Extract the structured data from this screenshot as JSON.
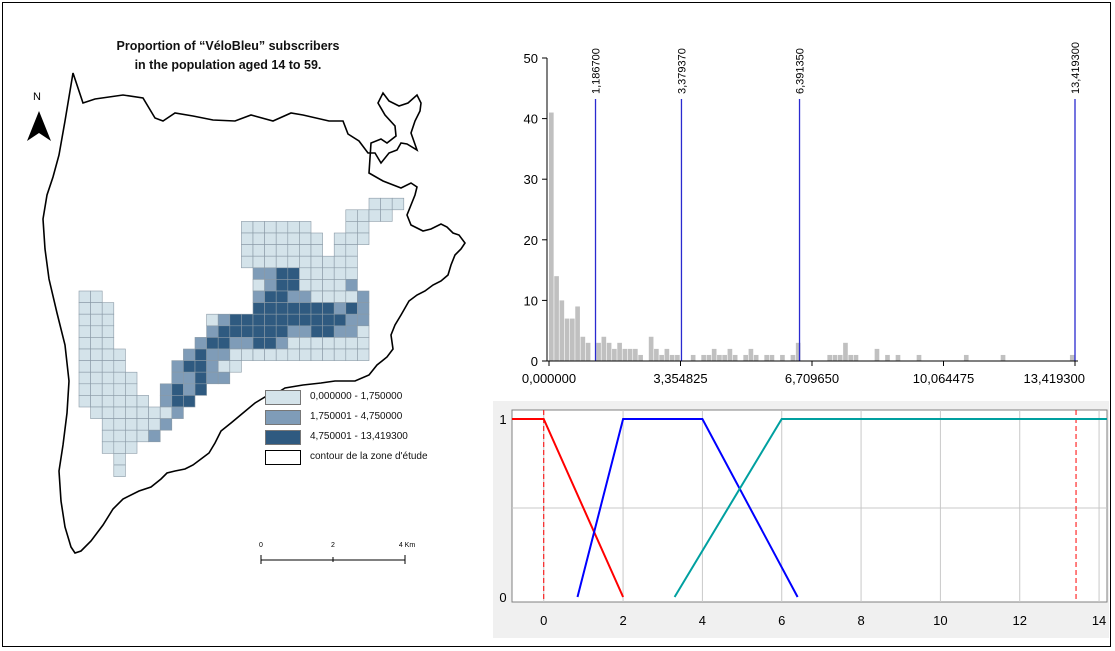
{
  "map": {
    "title_line1": "Proportion of “VéloBleu” subscribers",
    "title_line2": "in the population aged 14 to 59.",
    "north_label": "N",
    "legend": [
      {
        "label": "0,000000 - 1,750000",
        "color": "#d4e3ea"
      },
      {
        "label": "1,750001 - 4,750000",
        "color": "#7f9cb8"
      },
      {
        "label": "4,750001 - 13,419300",
        "color": "#2f5a80"
      },
      {
        "label": "contour de la zone d'étude",
        "color": "#ffffff"
      }
    ],
    "scale_bar": {
      "labels": [
        "0",
        "2",
        "4 Km"
      ]
    }
  },
  "histogram": {
    "y_ticks": [
      "50",
      "40",
      "30",
      "20",
      "10",
      "0"
    ],
    "x_ticks": [
      "0,000000",
      "3,354825",
      "6,709650",
      "10,064475",
      "13,419300"
    ],
    "breaks": [
      "1,186700",
      "3,379370",
      "6,391350",
      "13,419300"
    ],
    "colors": {
      "bars": "#c0c0c0",
      "break_lines": "#2a2ad0"
    }
  },
  "membership_plot": {
    "y_ticks": [
      "1",
      "0"
    ],
    "x_ticks": [
      "0",
      "2",
      "4",
      "6",
      "8",
      "10",
      "12",
      "14"
    ],
    "colors": {
      "set1": "#ff0000",
      "set2": "#0000ff",
      "set3": "#00a0a0",
      "bounds": "#ff0000"
    }
  },
  "chart_data": [
    {
      "type": "bar",
      "xlim": [
        0,
        13.4193
      ],
      "ylim": [
        0,
        50
      ],
      "bin_width": 0.134,
      "bins": [
        {
          "x": 0.0,
          "y": 41
        },
        {
          "x": 0.134,
          "y": 14
        },
        {
          "x": 0.268,
          "y": 10
        },
        {
          "x": 0.402,
          "y": 7
        },
        {
          "x": 0.536,
          "y": 7
        },
        {
          "x": 0.67,
          "y": 9
        },
        {
          "x": 0.804,
          "y": 4
        },
        {
          "x": 0.938,
          "y": 3
        },
        {
          "x": 1.206,
          "y": 3
        },
        {
          "x": 1.34,
          "y": 4
        },
        {
          "x": 1.474,
          "y": 3
        },
        {
          "x": 1.608,
          "y": 2
        },
        {
          "x": 1.742,
          "y": 3
        },
        {
          "x": 1.876,
          "y": 2
        },
        {
          "x": 2.01,
          "y": 2
        },
        {
          "x": 2.144,
          "y": 2
        },
        {
          "x": 2.278,
          "y": 1
        },
        {
          "x": 2.546,
          "y": 4
        },
        {
          "x": 2.68,
          "y": 2
        },
        {
          "x": 2.814,
          "y": 1
        },
        {
          "x": 2.948,
          "y": 2
        },
        {
          "x": 3.082,
          "y": 1
        },
        {
          "x": 3.216,
          "y": 1
        },
        {
          "x": 3.618,
          "y": 1
        },
        {
          "x": 3.886,
          "y": 1
        },
        {
          "x": 4.02,
          "y": 1
        },
        {
          "x": 4.154,
          "y": 2
        },
        {
          "x": 4.288,
          "y": 1
        },
        {
          "x": 4.422,
          "y": 1
        },
        {
          "x": 4.556,
          "y": 2
        },
        {
          "x": 4.69,
          "y": 1
        },
        {
          "x": 4.958,
          "y": 1
        },
        {
          "x": 5.092,
          "y": 2
        },
        {
          "x": 5.226,
          "y": 1
        },
        {
          "x": 5.494,
          "y": 1
        },
        {
          "x": 5.628,
          "y": 1
        },
        {
          "x": 5.896,
          "y": 1
        },
        {
          "x": 6.164,
          "y": 1
        },
        {
          "x": 6.298,
          "y": 3
        },
        {
          "x": 7.102,
          "y": 1
        },
        {
          "x": 7.236,
          "y": 1
        },
        {
          "x": 7.37,
          "y": 1
        },
        {
          "x": 7.504,
          "y": 3
        },
        {
          "x": 7.638,
          "y": 1
        },
        {
          "x": 7.772,
          "y": 1
        },
        {
          "x": 8.308,
          "y": 2
        },
        {
          "x": 8.576,
          "y": 1
        },
        {
          "x": 8.844,
          "y": 1
        },
        {
          "x": 9.38,
          "y": 1
        },
        {
          "x": 10.586,
          "y": 1
        },
        {
          "x": 11.524,
          "y": 1
        },
        {
          "x": 13.29,
          "y": 1
        }
      ],
      "breaks": [
        1.1867,
        3.37937,
        6.39135,
        13.4193
      ]
    },
    {
      "type": "line",
      "xlim": [
        -0.8,
        14.2
      ],
      "ylim": [
        0,
        1
      ],
      "series": [
        {
          "color": "#ff0000",
          "points": [
            [
              -0.8,
              1
            ],
            [
              0,
              1
            ],
            [
              2,
              0
            ]
          ]
        },
        {
          "color": "#0000ff",
          "points": [
            [
              0.85,
              0
            ],
            [
              2,
              1
            ],
            [
              4,
              1
            ],
            [
              6.4,
              0
            ]
          ]
        },
        {
          "color": "#00a0a0",
          "points": [
            [
              3.3,
              0
            ],
            [
              6,
              1
            ],
            [
              14.2,
              1
            ]
          ]
        }
      ],
      "bounds": [
        0,
        13.4193
      ]
    }
  ]
}
